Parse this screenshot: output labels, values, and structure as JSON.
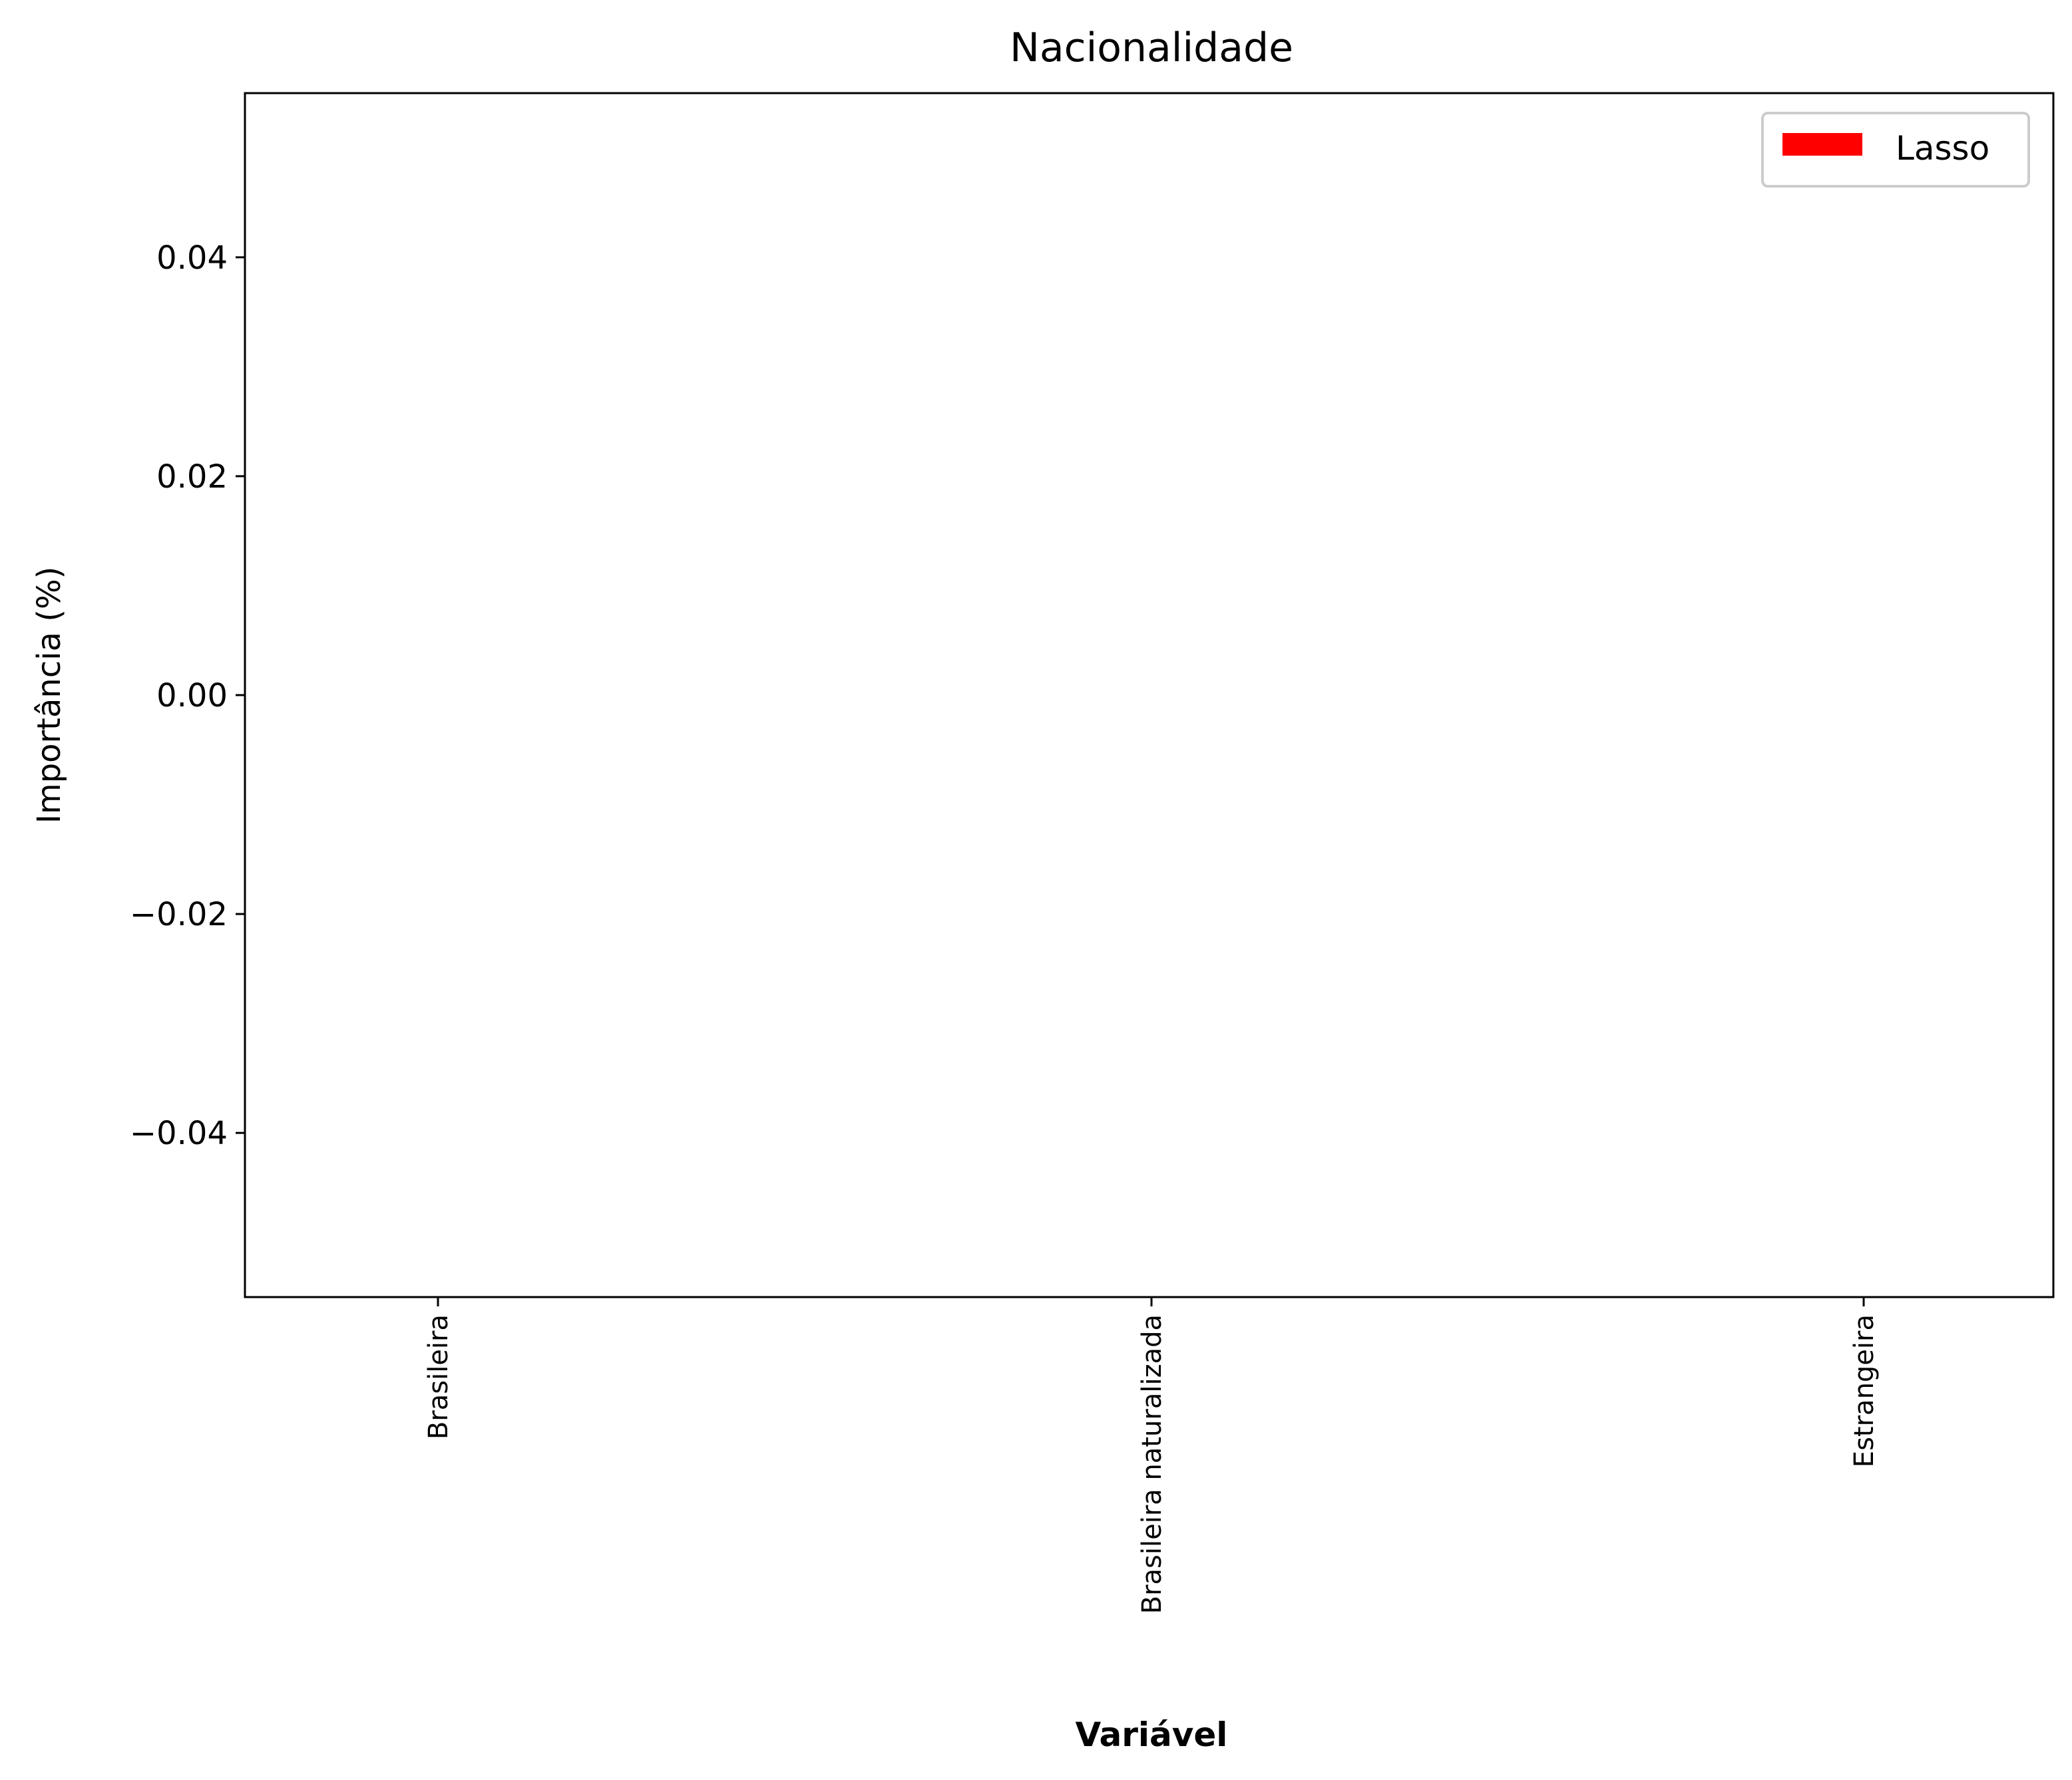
{
  "chart_data": {
    "type": "bar",
    "title": "Nacionalidade",
    "xlabel": "Variável",
    "ylabel": "Importância (%)",
    "categories": [
      "Brasileira",
      "Brasileira naturalizada",
      "Estrangeira"
    ],
    "series": [
      {
        "name": "Lasso",
        "color": "#ff0000",
        "values": [
          0,
          0,
          0
        ]
      }
    ],
    "ylim": [
      -0.055,
      0.055
    ],
    "yticks": [
      0.04,
      0.02,
      0.0,
      -0.02,
      -0.04
    ],
    "ytick_labels": [
      "0.04",
      "0.02",
      "0.00",
      "−0.02",
      "−0.04"
    ],
    "grid": false,
    "legend_position": "top-right"
  }
}
